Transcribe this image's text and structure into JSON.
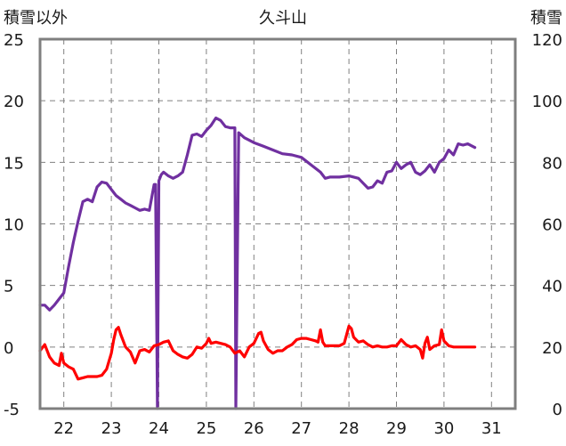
{
  "chart_data": {
    "type": "line",
    "title": "久斗山",
    "left_axis_label": "積雪以外",
    "right_axis_label": "積雪",
    "left_ylim": [
      -5,
      25
    ],
    "left_ticks": [
      -5,
      0,
      5,
      10,
      15,
      20,
      25
    ],
    "right_ylim": [
      0,
      120
    ],
    "right_ticks": [
      0,
      20,
      40,
      60,
      80,
      100,
      120
    ],
    "xlim": [
      21.5,
      31.5
    ],
    "x_ticks": [
      22,
      23,
      24,
      25,
      26,
      27,
      28,
      29,
      30,
      31
    ],
    "grid": true,
    "legend": "none",
    "series": [
      {
        "axis": "left",
        "color": "#7030a0",
        "points": [
          [
            21.5,
            3.4
          ],
          [
            21.6,
            3.4
          ],
          [
            21.7,
            3.0
          ],
          [
            21.8,
            3.4
          ],
          [
            21.9,
            3.9
          ],
          [
            22.0,
            4.4
          ],
          [
            22.1,
            6.5
          ],
          [
            22.2,
            8.5
          ],
          [
            22.3,
            10.2
          ],
          [
            22.4,
            11.8
          ],
          [
            22.5,
            12.0
          ],
          [
            22.6,
            11.8
          ],
          [
            22.7,
            13.0
          ],
          [
            22.8,
            13.4
          ],
          [
            22.9,
            13.3
          ],
          [
            23.0,
            12.8
          ],
          [
            23.1,
            12.3
          ],
          [
            23.2,
            12.0
          ],
          [
            23.3,
            11.7
          ],
          [
            23.4,
            11.5
          ],
          [
            23.5,
            11.3
          ],
          [
            23.6,
            11.1
          ],
          [
            23.7,
            11.2
          ],
          [
            23.8,
            11.1
          ],
          [
            23.9,
            13.2
          ],
          [
            23.93,
            13.2
          ],
          [
            23.97,
            -5.0
          ],
          [
            24.0,
            13.5
          ],
          [
            24.05,
            14.0
          ],
          [
            24.1,
            14.2
          ],
          [
            24.2,
            13.9
          ],
          [
            24.3,
            13.7
          ],
          [
            24.4,
            13.9
          ],
          [
            24.5,
            14.2
          ],
          [
            24.6,
            15.6
          ],
          [
            24.7,
            17.2
          ],
          [
            24.8,
            17.3
          ],
          [
            24.9,
            17.1
          ],
          [
            25.0,
            17.6
          ],
          [
            25.1,
            18.0
          ],
          [
            25.2,
            18.6
          ],
          [
            25.3,
            18.4
          ],
          [
            25.4,
            17.9
          ],
          [
            25.5,
            17.8
          ],
          [
            25.6,
            17.8
          ],
          [
            25.62,
            -5.0
          ],
          [
            25.68,
            17.4
          ],
          [
            25.8,
            17.0
          ],
          [
            25.9,
            16.8
          ],
          [
            26.0,
            16.6
          ],
          [
            26.2,
            16.3
          ],
          [
            26.4,
            16.0
          ],
          [
            26.6,
            15.7
          ],
          [
            26.8,
            15.6
          ],
          [
            27.0,
            15.4
          ],
          [
            27.2,
            14.8
          ],
          [
            27.4,
            14.2
          ],
          [
            27.5,
            13.7
          ],
          [
            27.6,
            13.8
          ],
          [
            27.8,
            13.8
          ],
          [
            28.0,
            13.9
          ],
          [
            28.2,
            13.7
          ],
          [
            28.3,
            13.3
          ],
          [
            28.4,
            12.9
          ],
          [
            28.5,
            13.0
          ],
          [
            28.6,
            13.5
          ],
          [
            28.7,
            13.3
          ],
          [
            28.8,
            14.2
          ],
          [
            28.9,
            14.3
          ],
          [
            29.0,
            15.0
          ],
          [
            29.1,
            14.5
          ],
          [
            29.2,
            14.8
          ],
          [
            29.3,
            15.0
          ],
          [
            29.4,
            14.2
          ],
          [
            29.5,
            14.0
          ],
          [
            29.6,
            14.3
          ],
          [
            29.7,
            14.8
          ],
          [
            29.8,
            14.2
          ],
          [
            29.9,
            15.0
          ],
          [
            30.0,
            15.3
          ],
          [
            30.1,
            16.0
          ],
          [
            30.2,
            15.6
          ],
          [
            30.3,
            16.5
          ],
          [
            30.4,
            16.4
          ],
          [
            30.5,
            16.5
          ],
          [
            30.6,
            16.3
          ],
          [
            30.65,
            16.2
          ]
        ]
      },
      {
        "axis": "left",
        "color": "#ff0000",
        "points": [
          [
            21.5,
            -0.3
          ],
          [
            21.6,
            0.2
          ],
          [
            21.7,
            -0.8
          ],
          [
            21.8,
            -1.3
          ],
          [
            21.9,
            -1.5
          ],
          [
            21.95,
            -0.5
          ],
          [
            22.0,
            -1.3
          ],
          [
            22.1,
            -1.6
          ],
          [
            22.2,
            -1.8
          ],
          [
            22.3,
            -2.6
          ],
          [
            22.4,
            -2.5
          ],
          [
            22.5,
            -2.4
          ],
          [
            22.6,
            -2.4
          ],
          [
            22.7,
            -2.4
          ],
          [
            22.8,
            -2.3
          ],
          [
            22.9,
            -1.8
          ],
          [
            23.0,
            -0.5
          ],
          [
            23.05,
            0.6
          ],
          [
            23.1,
            1.4
          ],
          [
            23.15,
            1.6
          ],
          [
            23.2,
            1.0
          ],
          [
            23.3,
            0.0
          ],
          [
            23.4,
            -0.4
          ],
          [
            23.5,
            -1.3
          ],
          [
            23.6,
            -0.3
          ],
          [
            23.7,
            -0.2
          ],
          [
            23.8,
            -0.4
          ],
          [
            23.9,
            0.1
          ],
          [
            24.0,
            0.2
          ],
          [
            24.1,
            0.4
          ],
          [
            24.2,
            0.5
          ],
          [
            24.3,
            -0.3
          ],
          [
            24.4,
            -0.6
          ],
          [
            24.5,
            -0.8
          ],
          [
            24.6,
            -0.9
          ],
          [
            24.7,
            -0.6
          ],
          [
            24.8,
            0.0
          ],
          [
            24.9,
            -0.1
          ],
          [
            25.0,
            0.3
          ],
          [
            25.05,
            0.7
          ],
          [
            25.1,
            0.3
          ],
          [
            25.2,
            0.4
          ],
          [
            25.3,
            0.3
          ],
          [
            25.4,
            0.2
          ],
          [
            25.5,
            0.0
          ],
          [
            25.6,
            -0.5
          ],
          [
            25.7,
            -0.3
          ],
          [
            25.8,
            -0.8
          ],
          [
            25.9,
            0.0
          ],
          [
            26.0,
            0.3
          ],
          [
            26.1,
            1.1
          ],
          [
            26.15,
            1.2
          ],
          [
            26.2,
            0.5
          ],
          [
            26.3,
            -0.2
          ],
          [
            26.4,
            -0.5
          ],
          [
            26.5,
            -0.3
          ],
          [
            26.6,
            -0.3
          ],
          [
            26.7,
            0.0
          ],
          [
            26.8,
            0.2
          ],
          [
            26.9,
            0.6
          ],
          [
            27.0,
            0.7
          ],
          [
            27.1,
            0.7
          ],
          [
            27.2,
            0.6
          ],
          [
            27.3,
            0.5
          ],
          [
            27.35,
            0.4
          ],
          [
            27.4,
            1.4
          ],
          [
            27.45,
            0.4
          ],
          [
            27.5,
            0.1
          ],
          [
            27.6,
            0.1
          ],
          [
            27.7,
            0.1
          ],
          [
            27.8,
            0.1
          ],
          [
            27.9,
            0.3
          ],
          [
            28.0,
            1.7
          ],
          [
            28.05,
            1.5
          ],
          [
            28.1,
            0.8
          ],
          [
            28.2,
            0.4
          ],
          [
            28.3,
            0.5
          ],
          [
            28.4,
            0.2
          ],
          [
            28.5,
            0.0
          ],
          [
            28.6,
            0.1
          ],
          [
            28.7,
            0.0
          ],
          [
            28.8,
            0.0
          ],
          [
            28.9,
            0.1
          ],
          [
            29.0,
            0.1
          ],
          [
            29.1,
            0.6
          ],
          [
            29.2,
            0.2
          ],
          [
            29.3,
            0.0
          ],
          [
            29.4,
            0.1
          ],
          [
            29.5,
            -0.2
          ],
          [
            29.55,
            -0.9
          ],
          [
            29.6,
            0.3
          ],
          [
            29.65,
            0.8
          ],
          [
            29.7,
            -0.2
          ],
          [
            29.8,
            0.1
          ],
          [
            29.9,
            0.2
          ],
          [
            29.95,
            1.4
          ],
          [
            30.0,
            0.5
          ],
          [
            30.1,
            0.1
          ],
          [
            30.2,
            0.0
          ],
          [
            30.3,
            0.0
          ],
          [
            30.4,
            0.0
          ],
          [
            30.5,
            0.0
          ],
          [
            30.6,
            0.0
          ],
          [
            30.65,
            0.0
          ]
        ]
      }
    ]
  }
}
